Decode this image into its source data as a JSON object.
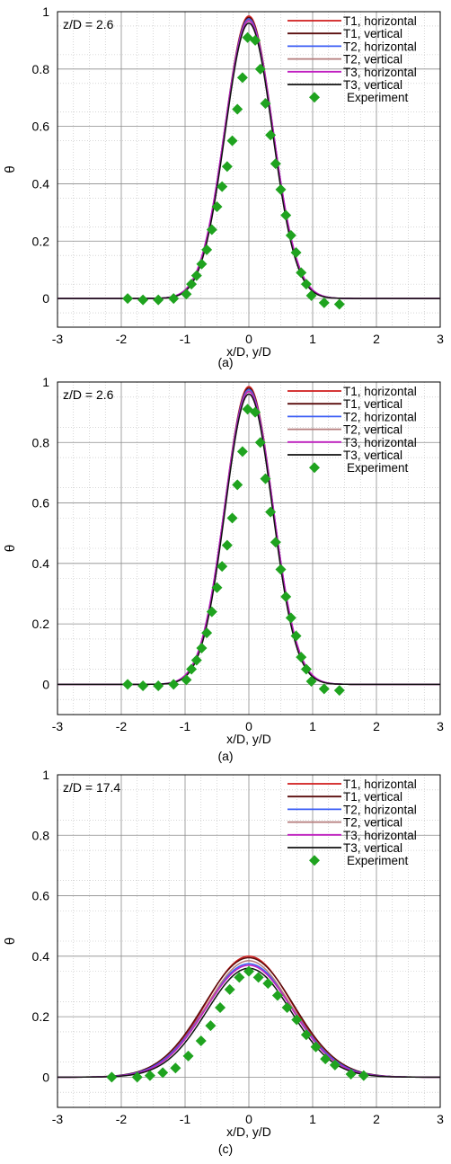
{
  "series_styles": [
    {
      "name": "T1, horizontal",
      "color": "#d11c1c"
    },
    {
      "name": "T1, vertical",
      "color": "#5a0c0c"
    },
    {
      "name": "T2, horizontal",
      "color": "#3a5cf5"
    },
    {
      "name": "T2, vertical",
      "color": "#b47c7c"
    },
    {
      "name": "T3, horizontal",
      "color": "#c01fc0"
    },
    {
      "name": "T3, vertical",
      "color": "#111111"
    }
  ],
  "experiment_color": "#1fa31f",
  "chart_data": [
    {
      "type": "line",
      "annotation": "z/D = 2.6",
      "caption": "(a)",
      "xlabel": "x/D, y/D",
      "ylabel": "θ",
      "xlim": [
        -3,
        3
      ],
      "ylim": [
        -0.1,
        1
      ],
      "xticks": [
        -3,
        -2,
        -1,
        0,
        1,
        2,
        3
      ],
      "yticks": [
        0,
        0.2,
        0.4,
        0.6,
        0.8,
        1
      ],
      "grid": true,
      "legend_position": "top-right",
      "series": [
        {
          "name": "T1, horizontal",
          "peak": 0.985,
          "sigma": 0.375
        },
        {
          "name": "T1, vertical",
          "peak": 0.98,
          "sigma": 0.372
        },
        {
          "name": "T2, horizontal",
          "peak": 0.975,
          "sigma": 0.378
        },
        {
          "name": "T2, vertical",
          "peak": 0.97,
          "sigma": 0.375
        },
        {
          "name": "T3, horizontal",
          "peak": 0.968,
          "sigma": 0.38
        },
        {
          "name": "T3, vertical",
          "peak": 0.96,
          "sigma": 0.37
        }
      ],
      "experiment": {
        "name": "Experiment",
        "x": [
          -1.9,
          -1.66,
          -1.42,
          -1.18,
          -0.98,
          -0.9,
          -0.82,
          -0.74,
          -0.66,
          -0.58,
          -0.5,
          -0.42,
          -0.34,
          -0.26,
          -0.18,
          -0.1,
          -0.02,
          0.1,
          0.18,
          0.26,
          0.34,
          0.42,
          0.5,
          0.58,
          0.66,
          0.74,
          0.82,
          0.9,
          0.98,
          1.18,
          1.42
        ],
        "y": [
          0.0,
          -0.005,
          -0.005,
          0.0,
          0.015,
          0.05,
          0.08,
          0.12,
          0.17,
          0.24,
          0.32,
          0.39,
          0.46,
          0.55,
          0.66,
          0.77,
          0.91,
          0.9,
          0.8,
          0.68,
          0.57,
          0.47,
          0.38,
          0.29,
          0.22,
          0.16,
          0.09,
          0.05,
          0.01,
          -0.015,
          -0.02
        ]
      }
    },
    {
      "type": "line",
      "annotation": "z/D = 2.6",
      "caption": "(a)",
      "xlabel": "x/D, y/D",
      "ylabel": "θ",
      "xlim": [
        -3,
        3
      ],
      "ylim": [
        -0.1,
        1
      ],
      "xticks": [
        -3,
        -2,
        -1,
        0,
        1,
        2,
        3
      ],
      "yticks": [
        0,
        0.2,
        0.4,
        0.6,
        0.8,
        1
      ],
      "grid": true,
      "legend_position": "top-right",
      "series": [
        {
          "name": "T1, horizontal",
          "peak": 0.985,
          "sigma": 0.375
        },
        {
          "name": "T1, vertical",
          "peak": 0.98,
          "sigma": 0.372
        },
        {
          "name": "T2, horizontal",
          "peak": 0.975,
          "sigma": 0.378
        },
        {
          "name": "T2, vertical",
          "peak": 0.97,
          "sigma": 0.375
        },
        {
          "name": "T3, horizontal",
          "peak": 0.968,
          "sigma": 0.38
        },
        {
          "name": "T3, vertical",
          "peak": 0.96,
          "sigma": 0.37
        }
      ],
      "experiment": {
        "name": "Experiment",
        "x": [
          -1.9,
          -1.66,
          -1.42,
          -1.18,
          -0.98,
          -0.9,
          -0.82,
          -0.74,
          -0.66,
          -0.58,
          -0.5,
          -0.42,
          -0.34,
          -0.26,
          -0.18,
          -0.1,
          -0.02,
          0.1,
          0.18,
          0.26,
          0.34,
          0.42,
          0.5,
          0.58,
          0.66,
          0.74,
          0.82,
          0.9,
          0.98,
          1.18,
          1.42
        ],
        "y": [
          0.0,
          -0.005,
          -0.005,
          0.0,
          0.015,
          0.05,
          0.08,
          0.12,
          0.17,
          0.24,
          0.32,
          0.39,
          0.46,
          0.55,
          0.66,
          0.77,
          0.91,
          0.9,
          0.8,
          0.68,
          0.57,
          0.47,
          0.38,
          0.29,
          0.22,
          0.16,
          0.09,
          0.05,
          0.01,
          -0.015,
          -0.02
        ]
      }
    },
    {
      "type": "line",
      "annotation": "z/D = 17.4",
      "caption": "(c)",
      "xlabel": "x/D, y/D",
      "ylabel": "θ",
      "xlim": [
        -3,
        3
      ],
      "ylim": [
        -0.1,
        1
      ],
      "xticks": [
        -3,
        -2,
        -1,
        0,
        1,
        2,
        3
      ],
      "yticks": [
        0,
        0.2,
        0.4,
        0.6,
        0.8,
        1
      ],
      "grid": true,
      "legend_position": "top-right",
      "series": [
        {
          "name": "T1, horizontal",
          "peak": 0.4,
          "sigma": 0.68
        },
        {
          "name": "T1, vertical",
          "peak": 0.395,
          "sigma": 0.7
        },
        {
          "name": "T2, horizontal",
          "peak": 0.375,
          "sigma": 0.69
        },
        {
          "name": "T2, vertical",
          "peak": 0.385,
          "sigma": 0.67
        },
        {
          "name": "T3, horizontal",
          "peak": 0.37,
          "sigma": 0.68
        },
        {
          "name": "T3, vertical",
          "peak": 0.36,
          "sigma": 0.66
        }
      ],
      "experiment": {
        "name": "Experiment",
        "x": [
          -2.15,
          -1.75,
          -1.55,
          -1.35,
          -1.15,
          -0.95,
          -0.75,
          -0.6,
          -0.45,
          -0.3,
          -0.15,
          0.0,
          0.15,
          0.3,
          0.45,
          0.6,
          0.75,
          0.9,
          1.05,
          1.2,
          1.35,
          1.6,
          1.8
        ],
        "y": [
          0.0,
          0.0,
          0.005,
          0.015,
          0.03,
          0.07,
          0.12,
          0.17,
          0.23,
          0.29,
          0.33,
          0.35,
          0.33,
          0.31,
          0.27,
          0.23,
          0.19,
          0.14,
          0.1,
          0.06,
          0.04,
          0.01,
          0.005
        ]
      }
    }
  ]
}
